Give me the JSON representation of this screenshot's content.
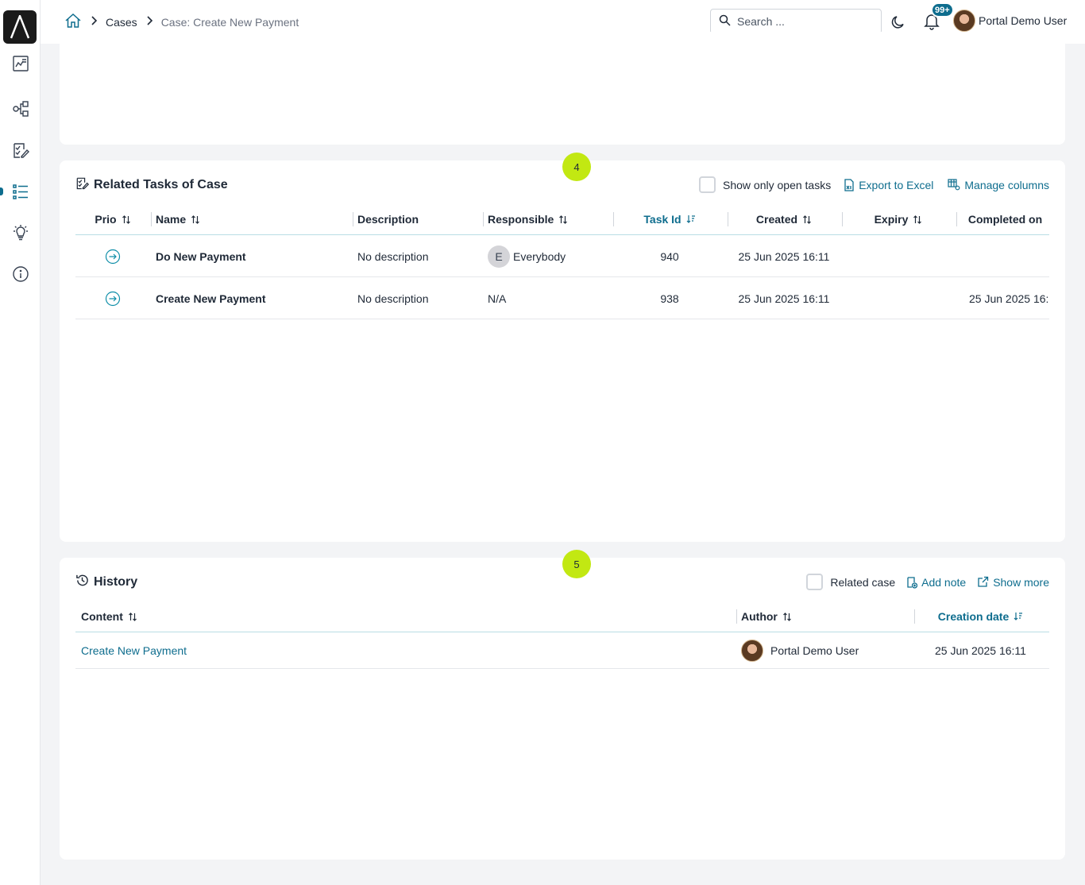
{
  "breadcrumb": {
    "home": "home-icon",
    "cases": "Cases",
    "current": "Case: Create New Payment"
  },
  "header": {
    "search_placeholder": "Search ...",
    "notification_badge": "99+",
    "user_name": "Portal Demo User"
  },
  "sidebar": {
    "items": [
      "dashboard-icon",
      "processes-icon",
      "tasks-icon",
      "cases-icon",
      "ideas-icon",
      "info-icon"
    ],
    "active": "cases-icon"
  },
  "tasks_panel": {
    "step": "4",
    "title": "Related Tasks of Case",
    "show_open_label": "Show only open tasks",
    "export_label": "Export to Excel",
    "manage_label": "Manage columns",
    "columns": {
      "prio": "Prio",
      "name": "Name",
      "description": "Description",
      "responsible": "Responsible",
      "task_id": "Task Id",
      "created": "Created",
      "expiry": "Expiry",
      "completed": "Completed on"
    },
    "rows": [
      {
        "name": "Do New Payment",
        "description": "No description",
        "responsible_initial": "E",
        "responsible": "Everybody",
        "task_id": "940",
        "created": "25 Jun 2025 16:11",
        "expiry": "",
        "completed": ""
      },
      {
        "name": "Create New Payment",
        "description": "No description",
        "responsible_initial": "",
        "responsible": "N/A",
        "task_id": "938",
        "created": "25 Jun 2025 16:11",
        "expiry": "",
        "completed": "25 Jun 2025 16:"
      }
    ]
  },
  "history_panel": {
    "step": "5",
    "title": "History",
    "related_case_label": "Related case",
    "add_note_label": "Add note",
    "show_more_label": "Show more",
    "columns": {
      "content": "Content",
      "author": "Author",
      "creation_date": "Creation date"
    },
    "rows": [
      {
        "content": "Create New Payment",
        "author": "Portal Demo User",
        "creation_date": "25 Jun 2025 16:11"
      }
    ]
  },
  "colors": {
    "accent": "#0e6d8e",
    "step_bubble": "#c2e812"
  }
}
